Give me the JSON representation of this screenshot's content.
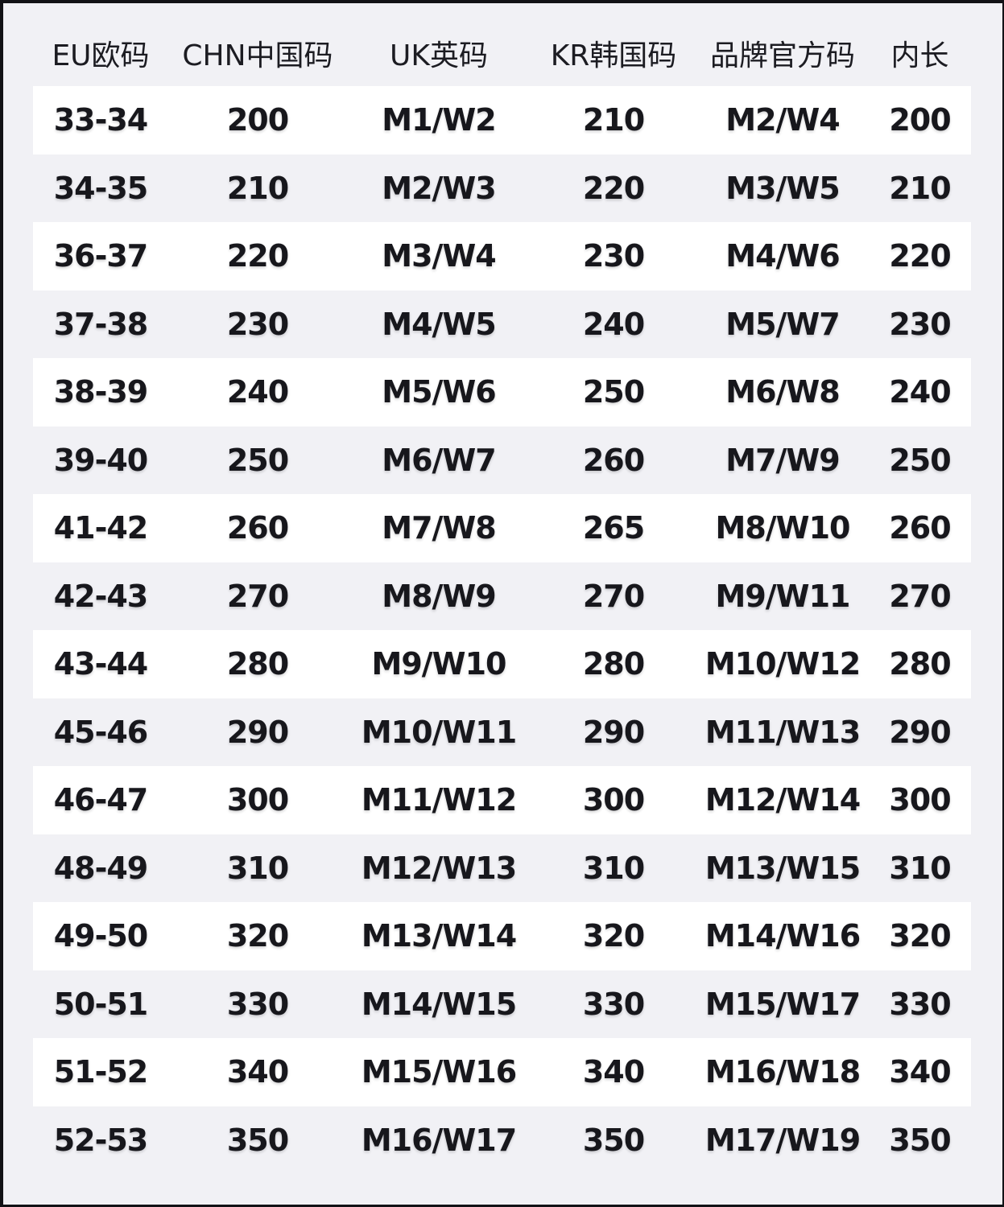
{
  "title": "shoe-size-conversion-chart",
  "colors": {
    "page_bg": "#f1f1f5",
    "stripe_bg": "#ffffff",
    "text": "#17171c",
    "frame_border": "#121216"
  },
  "table": {
    "headers": [
      "EU欧码",
      "CHN中国码",
      "UK英码",
      "KR韩国码",
      "品牌官方码",
      "内长"
    ],
    "rows": [
      [
        "33-34",
        "200",
        "M1/W2",
        "210",
        "M2/W4",
        "200"
      ],
      [
        "34-35",
        "210",
        "M2/W3",
        "220",
        "M3/W5",
        "210"
      ],
      [
        "36-37",
        "220",
        "M3/W4",
        "230",
        "M4/W6",
        "220"
      ],
      [
        "37-38",
        "230",
        "M4/W5",
        "240",
        "M5/W7",
        "230"
      ],
      [
        "38-39",
        "240",
        "M5/W6",
        "250",
        "M6/W8",
        "240"
      ],
      [
        "39-40",
        "250",
        "M6/W7",
        "260",
        "M7/W9",
        "250"
      ],
      [
        "41-42",
        "260",
        "M7/W8",
        "265",
        "M8/W10",
        "260"
      ],
      [
        "42-43",
        "270",
        "M8/W9",
        "270",
        "M9/W11",
        "270"
      ],
      [
        "43-44",
        "280",
        "M9/W10",
        "280",
        "M10/W12",
        "280"
      ],
      [
        "45-46",
        "290",
        "M10/W11",
        "290",
        "M11/W13",
        "290"
      ],
      [
        "46-47",
        "300",
        "M11/W12",
        "300",
        "M12/W14",
        "300"
      ],
      [
        "48-49",
        "310",
        "M12/W13",
        "310",
        "M13/W15",
        "310"
      ],
      [
        "49-50",
        "320",
        "M13/W14",
        "320",
        "M14/W16",
        "320"
      ],
      [
        "50-51",
        "330",
        "M14/W15",
        "330",
        "M15/W17",
        "330"
      ],
      [
        "51-52",
        "340",
        "M15/W16",
        "340",
        "M16/W18",
        "340"
      ],
      [
        "52-53",
        "350",
        "M16/W17",
        "350",
        "M17/W19",
        "350"
      ]
    ]
  },
  "chart_data": {
    "type": "table",
    "title": "",
    "columns": [
      "EU欧码",
      "CHN中国码",
      "UK英码",
      "KR韩国码",
      "品牌官方码",
      "内长"
    ],
    "rows": [
      [
        "33-34",
        "200",
        "M1/W2",
        "210",
        "M2/W4",
        "200"
      ],
      [
        "34-35",
        "210",
        "M2/W3",
        "220",
        "M3/W5",
        "210"
      ],
      [
        "36-37",
        "220",
        "M3/W4",
        "230",
        "M4/W6",
        "220"
      ],
      [
        "37-38",
        "230",
        "M4/W5",
        "240",
        "M5/W7",
        "230"
      ],
      [
        "38-39",
        "240",
        "M5/W6",
        "250",
        "M6/W8",
        "240"
      ],
      [
        "39-40",
        "250",
        "M6/W7",
        "260",
        "M7/W9",
        "250"
      ],
      [
        "41-42",
        "260",
        "M7/W8",
        "265",
        "M8/W10",
        "260"
      ],
      [
        "42-43",
        "270",
        "M8/W9",
        "270",
        "M9/W11",
        "270"
      ],
      [
        "43-44",
        "280",
        "M9/W10",
        "280",
        "M10/W12",
        "280"
      ],
      [
        "45-46",
        "290",
        "M10/W11",
        "290",
        "M11/W13",
        "290"
      ],
      [
        "46-47",
        "300",
        "M11/W12",
        "300",
        "M12/W14",
        "300"
      ],
      [
        "48-49",
        "310",
        "M12/W13",
        "310",
        "M13/W15",
        "310"
      ],
      [
        "49-50",
        "320",
        "M13/W14",
        "320",
        "M14/W16",
        "320"
      ],
      [
        "50-51",
        "330",
        "M14/W15",
        "330",
        "M15/W17",
        "330"
      ],
      [
        "51-52",
        "340",
        "M15/W16",
        "340",
        "M16/W18",
        "340"
      ],
      [
        "52-53",
        "350",
        "M16/W17",
        "350",
        "M17/W19",
        "350"
      ]
    ],
    "layout_hints": {
      "striped": true,
      "stripe_pattern": "odd rows white, even rows page-gray",
      "header_background": "page-gray",
      "grid_lines": false
    }
  }
}
